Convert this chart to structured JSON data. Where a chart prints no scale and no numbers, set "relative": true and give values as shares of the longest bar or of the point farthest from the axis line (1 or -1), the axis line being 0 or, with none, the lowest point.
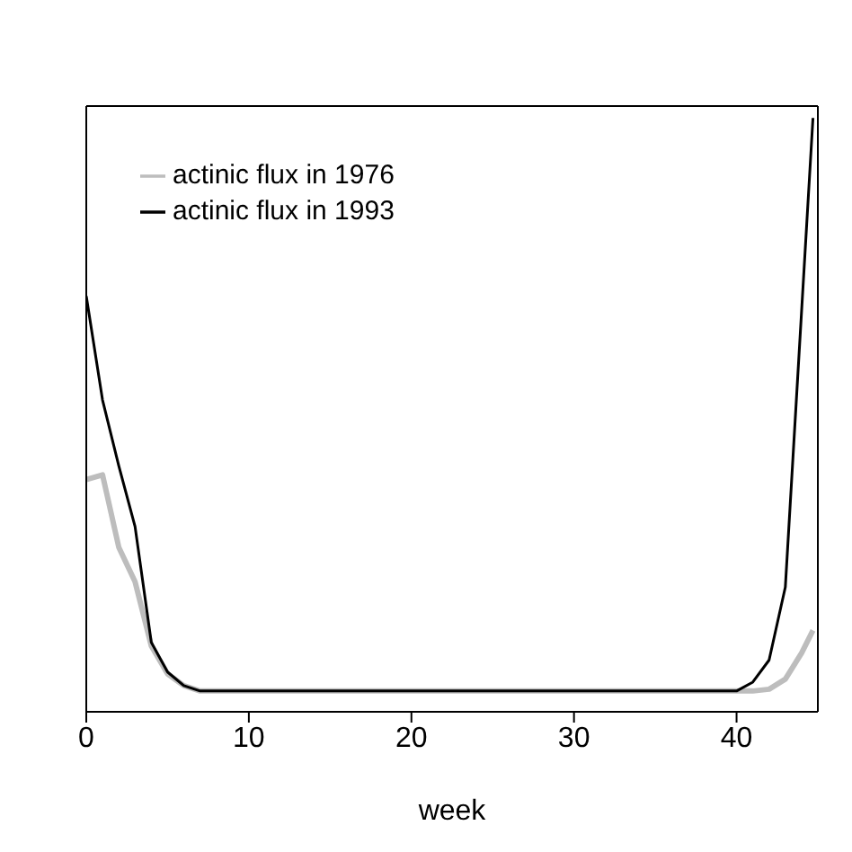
{
  "chart_data": {
    "type": "line",
    "xlabel": "week",
    "relative": true,
    "legend": "top left",
    "marker": "none",
    "line_style": "solid",
    "xlim": [
      0,
      45
    ],
    "xticks": [
      0,
      10,
      20,
      30,
      40
    ],
    "series": [
      {
        "name": "actinic flux in 1976",
        "color": "#bdbdbd",
        "x": [
          0,
          1,
          2,
          3,
          4,
          5,
          6,
          7,
          40,
          41,
          42,
          43,
          44,
          44.7
        ],
        "values": [
          0.391,
          0.399,
          0.277,
          0.219,
          0.111,
          0.064,
          0.044,
          0.035,
          0.035,
          0.035,
          0.038,
          0.055,
          0.099,
          0.137
        ]
      },
      {
        "name": "actinic flux in 1993",
        "color": "#000000",
        "x": [
          0,
          1,
          2,
          3,
          4,
          5,
          6,
          7,
          40,
          41,
          42,
          43,
          44.7
        ],
        "values": [
          0.7,
          0.525,
          0.414,
          0.312,
          0.117,
          0.067,
          0.044,
          0.035,
          0.035,
          0.05,
          0.087,
          0.21,
          1.0
        ]
      }
    ]
  }
}
